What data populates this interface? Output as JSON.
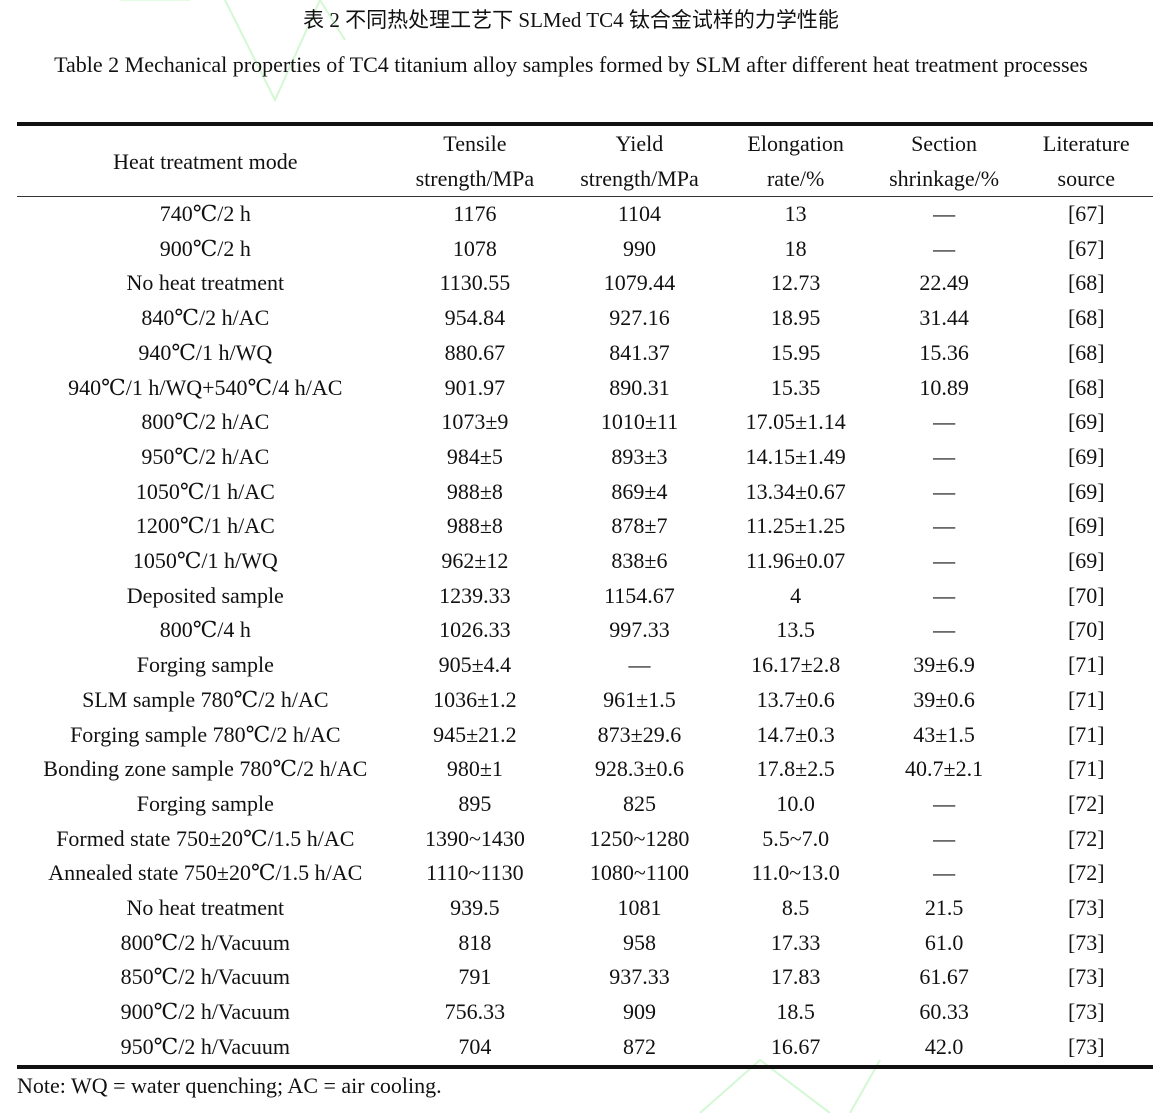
{
  "caption_cn": "表 2  不同热处理工艺下 SLMed TC4 钛合金试样的力学性能",
  "caption_en": "Table 2 Mechanical properties of TC4 titanium alloy samples formed by SLM after different heat treatment processes",
  "watermark_color": "#ccf5cc",
  "headers": [
    "Heat treatment mode",
    "Tensile strength/MPa",
    "Yield strength/MPa",
    "Elongation rate/%",
    "Section shrinkage/%",
    "Literature source"
  ],
  "rows": [
    [
      "740℃/2 h",
      "1176",
      "1104",
      "13",
      "—",
      "[67]"
    ],
    [
      "900℃/2 h",
      "1078",
      "990",
      "18",
      "—",
      "[67]"
    ],
    [
      "No heat treatment",
      "1130.55",
      "1079.44",
      "12.73",
      "22.49",
      "[68]"
    ],
    [
      "840℃/2 h/AC",
      "954.84",
      "927.16",
      "18.95",
      "31.44",
      "[68]"
    ],
    [
      "940℃/1 h/WQ",
      "880.67",
      "841.37",
      "15.95",
      "15.36",
      "[68]"
    ],
    [
      "940℃/1 h/WQ+540℃/4 h/AC",
      "901.97",
      "890.31",
      "15.35",
      "10.89",
      "[68]"
    ],
    [
      "800℃/2 h/AC",
      "1073±9",
      "1010±11",
      "17.05±1.14",
      "—",
      "[69]"
    ],
    [
      "950℃/2 h/AC",
      "984±5",
      "893±3",
      "14.15±1.49",
      "—",
      "[69]"
    ],
    [
      "1050℃/1 h/AC",
      "988±8",
      "869±4",
      "13.34±0.67",
      "—",
      "[69]"
    ],
    [
      "1200℃/1 h/AC",
      "988±8",
      "878±7",
      "11.25±1.25",
      "—",
      "[69]"
    ],
    [
      "1050℃/1 h/WQ",
      "962±12",
      "838±6",
      "11.96±0.07",
      "—",
      "[69]"
    ],
    [
      "Deposited sample",
      "1239.33",
      "1154.67",
      "4",
      "—",
      "[70]"
    ],
    [
      "800℃/4 h",
      "1026.33",
      "997.33",
      "13.5",
      "—",
      "[70]"
    ],
    [
      "Forging sample",
      "905±4.4",
      "—",
      "16.17±2.8",
      "39±6.9",
      "[71]"
    ],
    [
      "SLM sample 780℃/2 h/AC",
      "1036±1.2",
      "961±1.5",
      "13.7±0.6",
      "39±0.6",
      "[71]"
    ],
    [
      "Forging sample 780℃/2 h/AC",
      "945±21.2",
      "873±29.6",
      "14.7±0.3",
      "43±1.5",
      "[71]"
    ],
    [
      "Bonding zone sample 780℃/2 h/AC",
      "980±1",
      "928.3±0.6",
      "17.8±2.5",
      "40.7±2.1",
      "[71]"
    ],
    [
      "Forging sample",
      "895",
      "825",
      "10.0",
      "—",
      "[72]"
    ],
    [
      "Formed state 750±20℃/1.5 h/AC",
      "1390~1430",
      "1250~1280",
      "5.5~7.0",
      "—",
      "[72]"
    ],
    [
      "Annealed state 750±20℃/1.5 h/AC",
      "1110~1130",
      "1080~1100",
      "11.0~13.0",
      "—",
      "[72]"
    ],
    [
      "No heat treatment",
      "939.5",
      "1081",
      "8.5",
      "21.5",
      "[73]"
    ],
    [
      "800℃/2 h/Vacuum",
      "818",
      "958",
      "17.33",
      "61.0",
      "[73]"
    ],
    [
      "850℃/2 h/Vacuum",
      "791",
      "937.33",
      "17.83",
      "61.67",
      "[73]"
    ],
    [
      "900℃/2 h/Vacuum",
      "756.33",
      "909",
      "18.5",
      "60.33",
      "[73]"
    ],
    [
      "950℃/2 h/Vacuum",
      "704",
      "872",
      "16.67",
      "42.0",
      "[73]"
    ]
  ],
  "note": "Note: WQ = water quenching; AC = air cooling."
}
